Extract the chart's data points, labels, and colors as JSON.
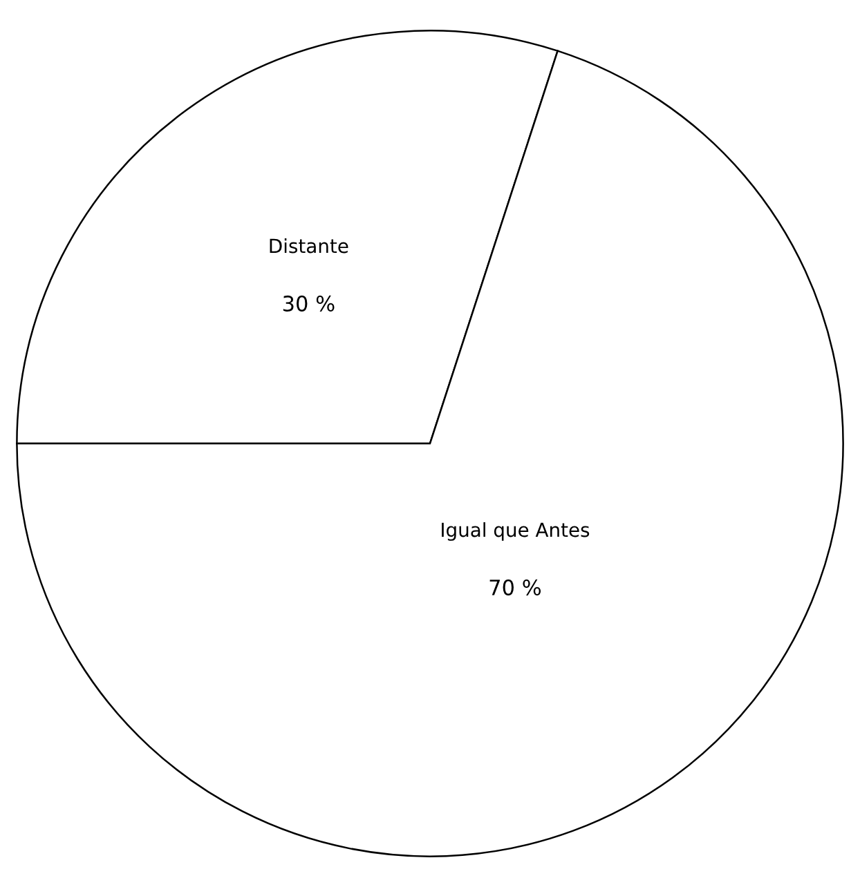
{
  "chart_data": {
    "type": "pie",
    "categories": [
      "Distante",
      "Igual que Antes"
    ],
    "values": [
      30,
      70
    ],
    "value_labels": [
      "30 %",
      "70 %"
    ],
    "colors": [
      "#ffffff",
      "#ffffff"
    ]
  }
}
